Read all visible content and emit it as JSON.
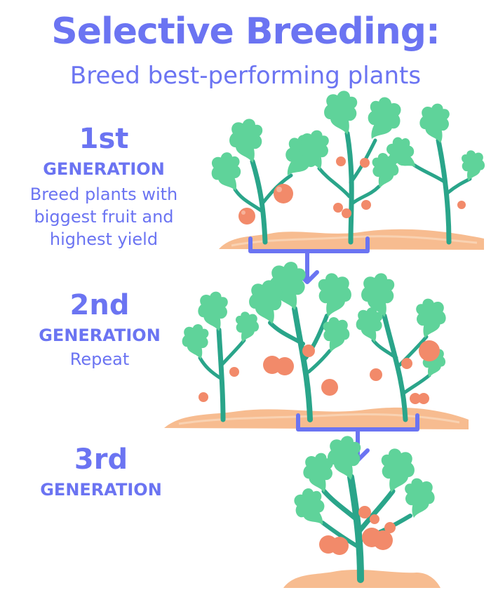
{
  "colors": {
    "accent": "#6b74f2",
    "leaf": "#5fd39a",
    "leaf_dark": "#3cb886",
    "stem": "#2aa58a",
    "fruit": "#f28a6a",
    "fruit_light": "#f7b29a",
    "soil": "#f7bc90",
    "soil_light": "#f9d2b2"
  },
  "header": {
    "title": "Selective Breeding:",
    "subtitle": "Breed best-performing plants"
  },
  "generations": [
    {
      "number": "1st",
      "label": "GENERATION",
      "description": [
        "Breed plants with",
        "biggest fruit and",
        "highest yield"
      ]
    },
    {
      "number": "2nd",
      "label": "GENERATION",
      "description": [
        "Repeat"
      ]
    },
    {
      "number": "3rd",
      "label": "GENERATION",
      "description": []
    }
  ],
  "icons": [
    "tomato-plant-icon",
    "bracket-connector",
    "down-arrow-icon",
    "soil-mound"
  ]
}
